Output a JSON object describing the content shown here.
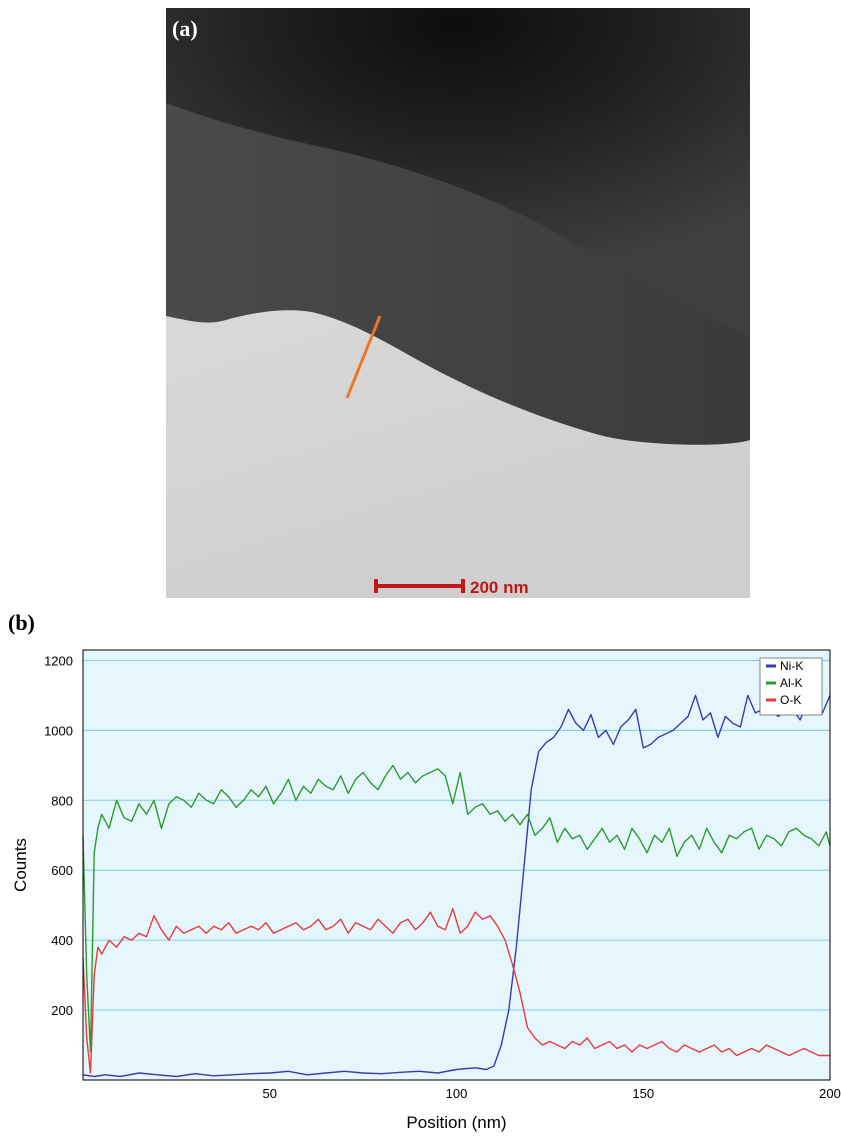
{
  "panel_a": {
    "label": "(a)",
    "scale_bar_label": "200 nm",
    "colors": {
      "line_scan": "#e8792c",
      "scale_bar": "#c01818"
    }
  },
  "panel_b": {
    "label": "(b)"
  },
  "chart_data": {
    "type": "line",
    "xlabel": "Position (nm)",
    "ylabel": "Counts",
    "xlim": [
      0,
      200
    ],
    "ylim": [
      0,
      1230
    ],
    "xticks": [
      50,
      100,
      150,
      200
    ],
    "yticks": [
      200,
      400,
      600,
      800,
      1000,
      1200
    ],
    "grid": "horizontal",
    "legend_position": "top-right",
    "background": "#e6f6fd",
    "grid_color": "#8fd3ea",
    "series": [
      {
        "name": "Ni-K",
        "color": "#3a3ab0",
        "x": [
          0,
          3,
          6,
          10,
          15,
          20,
          25,
          30,
          35,
          40,
          45,
          50,
          55,
          60,
          65,
          70,
          75,
          80,
          85,
          90,
          95,
          100,
          105,
          108,
          110,
          112,
          114,
          116,
          118,
          120,
          122,
          124,
          126,
          128,
          130,
          132,
          134,
          136,
          138,
          140,
          142,
          144,
          146,
          148,
          150,
          152,
          154,
          156,
          158,
          160,
          162,
          164,
          166,
          168,
          170,
          172,
          174,
          176,
          178,
          180,
          182,
          184,
          186,
          188,
          190,
          192,
          194,
          196,
          198,
          200
        ],
        "y": [
          15,
          10,
          15,
          10,
          20,
          15,
          10,
          18,
          12,
          15,
          18,
          20,
          25,
          15,
          20,
          25,
          20,
          18,
          22,
          25,
          20,
          30,
          35,
          30,
          40,
          100,
          200,
          380,
          600,
          830,
          940,
          965,
          980,
          1010,
          1060,
          1020,
          1000,
          1045,
          980,
          1000,
          960,
          1010,
          1030,
          1060,
          950,
          960,
          980,
          990,
          1000,
          1020,
          1040,
          1100,
          1030,
          1050,
          980,
          1040,
          1020,
          1010,
          1100,
          1050,
          1060,
          1070,
          1040,
          1050,
          1060,
          1030,
          1080,
          1070,
          1050,
          1100
        ]
      },
      {
        "name": "Al-K",
        "color": "#2e9a2e",
        "x": [
          0,
          1,
          2,
          3,
          4,
          5,
          7,
          9,
          11,
          13,
          15,
          17,
          19,
          21,
          23,
          25,
          27,
          29,
          31,
          33,
          35,
          37,
          39,
          41,
          43,
          45,
          47,
          49,
          51,
          53,
          55,
          57,
          59,
          61,
          63,
          65,
          67,
          69,
          71,
          73,
          75,
          77,
          79,
          81,
          83,
          85,
          87,
          89,
          91,
          93,
          95,
          97,
          99,
          101,
          103,
          105,
          107,
          109,
          111,
          113,
          115,
          117,
          119,
          121,
          123,
          125,
          127,
          129,
          131,
          133,
          135,
          137,
          139,
          141,
          143,
          145,
          147,
          149,
          151,
          153,
          155,
          157,
          159,
          161,
          163,
          165,
          167,
          169,
          171,
          173,
          175,
          177,
          179,
          181,
          183,
          185,
          187,
          189,
          191,
          193,
          195,
          197,
          199,
          200
        ],
        "y": [
          700,
          300,
          80,
          650,
          720,
          760,
          720,
          800,
          750,
          740,
          790,
          760,
          800,
          720,
          790,
          810,
          800,
          780,
          820,
          800,
          790,
          830,
          810,
          780,
          800,
          830,
          810,
          840,
          790,
          820,
          860,
          800,
          840,
          820,
          860,
          840,
          830,
          870,
          820,
          860,
          880,
          850,
          830,
          870,
          900,
          860,
          880,
          850,
          870,
          880,
          890,
          870,
          790,
          880,
          760,
          780,
          790,
          760,
          770,
          740,
          760,
          730,
          760,
          700,
          720,
          750,
          680,
          720,
          690,
          700,
          660,
          690,
          720,
          680,
          700,
          660,
          720,
          690,
          650,
          700,
          680,
          720,
          640,
          680,
          700,
          660,
          720,
          680,
          650,
          700,
          690,
          710,
          720,
          660,
          700,
          690,
          670,
          710,
          720,
          700,
          690,
          670,
          710,
          670
        ]
      },
      {
        "name": "O-K",
        "color": "#e83a3a",
        "x": [
          0,
          1,
          2,
          3,
          4,
          5,
          7,
          9,
          11,
          13,
          15,
          17,
          19,
          21,
          23,
          25,
          27,
          29,
          31,
          33,
          35,
          37,
          39,
          41,
          43,
          45,
          47,
          49,
          51,
          53,
          55,
          57,
          59,
          61,
          63,
          65,
          67,
          69,
          71,
          73,
          75,
          77,
          79,
          81,
          83,
          85,
          87,
          89,
          91,
          93,
          95,
          97,
          99,
          101,
          103,
          105,
          107,
          109,
          111,
          113,
          115,
          117,
          119,
          121,
          123,
          125,
          127,
          129,
          131,
          133,
          135,
          137,
          139,
          141,
          143,
          145,
          147,
          149,
          151,
          153,
          155,
          157,
          159,
          161,
          163,
          165,
          167,
          169,
          171,
          173,
          175,
          177,
          179,
          181,
          183,
          185,
          187,
          189,
          191,
          193,
          195,
          197,
          199,
          200
        ],
        "y": [
          350,
          120,
          20,
          300,
          380,
          360,
          400,
          380,
          410,
          400,
          420,
          410,
          470,
          430,
          400,
          440,
          420,
          430,
          440,
          420,
          440,
          430,
          450,
          420,
          430,
          440,
          430,
          450,
          420,
          430,
          440,
          450,
          430,
          440,
          460,
          430,
          440,
          460,
          420,
          450,
          440,
          430,
          460,
          440,
          420,
          450,
          460,
          430,
          450,
          480,
          440,
          430,
          490,
          420,
          440,
          480,
          460,
          470,
          440,
          400,
          330,
          250,
          150,
          120,
          100,
          110,
          100,
          90,
          110,
          100,
          120,
          90,
          100,
          110,
          90,
          100,
          80,
          100,
          90,
          100,
          110,
          90,
          80,
          100,
          90,
          80,
          90,
          100,
          80,
          90,
          70,
          80,
          90,
          80,
          100,
          90,
          80,
          70,
          80,
          90,
          80,
          70,
          70,
          70
        ]
      }
    ]
  }
}
